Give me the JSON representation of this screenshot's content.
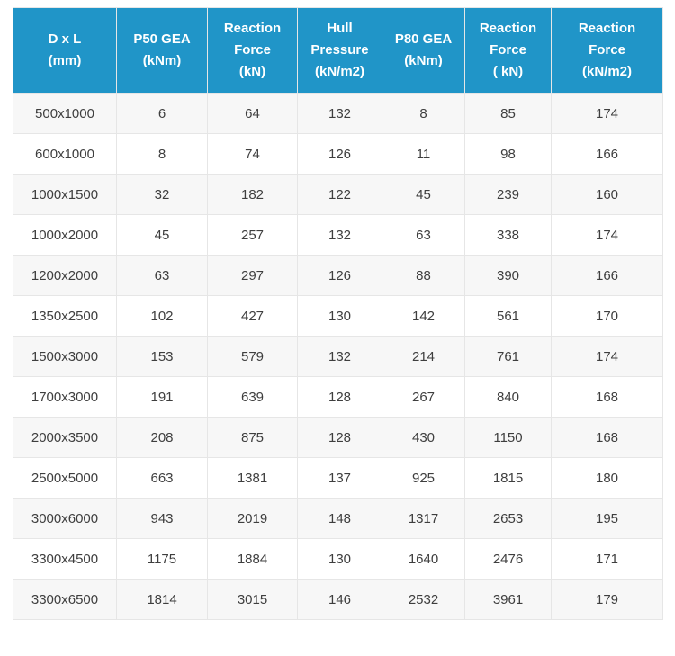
{
  "chart_data": {
    "type": "table",
    "title": "",
    "columns": [
      "D x L (mm)",
      "P50 GEA (kNm)",
      "Reaction Force (kN)",
      "Hull Pressure (kN/m2)",
      "P80 GEA (kNm)",
      "Reaction Force ( kN)",
      "Reaction Force (kN/m2)"
    ],
    "header_display": [
      "D x L\n(mm)",
      "P50 GEA\n(kNm)",
      "Reaction\nForce\n(kN)",
      "Hull\nPressure\n(kN/m2)",
      "P80 GEA\n(kNm)",
      "Reaction\nForce\n( kN)",
      "Reaction\nForce\n(kN/m2)"
    ],
    "rows": [
      [
        "500x1000",
        6,
        64,
        132,
        8,
        85,
        174
      ],
      [
        "600x1000",
        8,
        74,
        126,
        11,
        98,
        166
      ],
      [
        "1000x1500",
        32,
        182,
        122,
        45,
        239,
        160
      ],
      [
        "1000x2000",
        45,
        257,
        132,
        63,
        338,
        174
      ],
      [
        "1200x2000",
        63,
        297,
        126,
        88,
        390,
        166
      ],
      [
        "1350x2500",
        102,
        427,
        130,
        142,
        561,
        170
      ],
      [
        "1500x3000",
        153,
        579,
        132,
        214,
        761,
        174
      ],
      [
        "1700x3000",
        191,
        639,
        128,
        267,
        840,
        168
      ],
      [
        "2000x3500",
        208,
        875,
        128,
        430,
        1150,
        168
      ],
      [
        "2500x5000",
        663,
        1381,
        137,
        925,
        1815,
        180
      ],
      [
        "3000x6000",
        943,
        2019,
        148,
        1317,
        2653,
        195
      ],
      [
        "3300x4500",
        1175,
        1884,
        130,
        1640,
        2476,
        171
      ],
      [
        "3300x6500",
        1814,
        3015,
        146,
        2532,
        3961,
        179
      ]
    ],
    "layout": {
      "grid": true,
      "zebra_striping": true,
      "text_align": "center"
    }
  },
  "colors": {
    "header_bg": "#2095c8",
    "header_text": "#ffffff",
    "row_bg": "#ffffff",
    "row_alt_bg": "#f7f7f7",
    "body_text": "#3e3e3e",
    "border": "#e6e6e6"
  }
}
